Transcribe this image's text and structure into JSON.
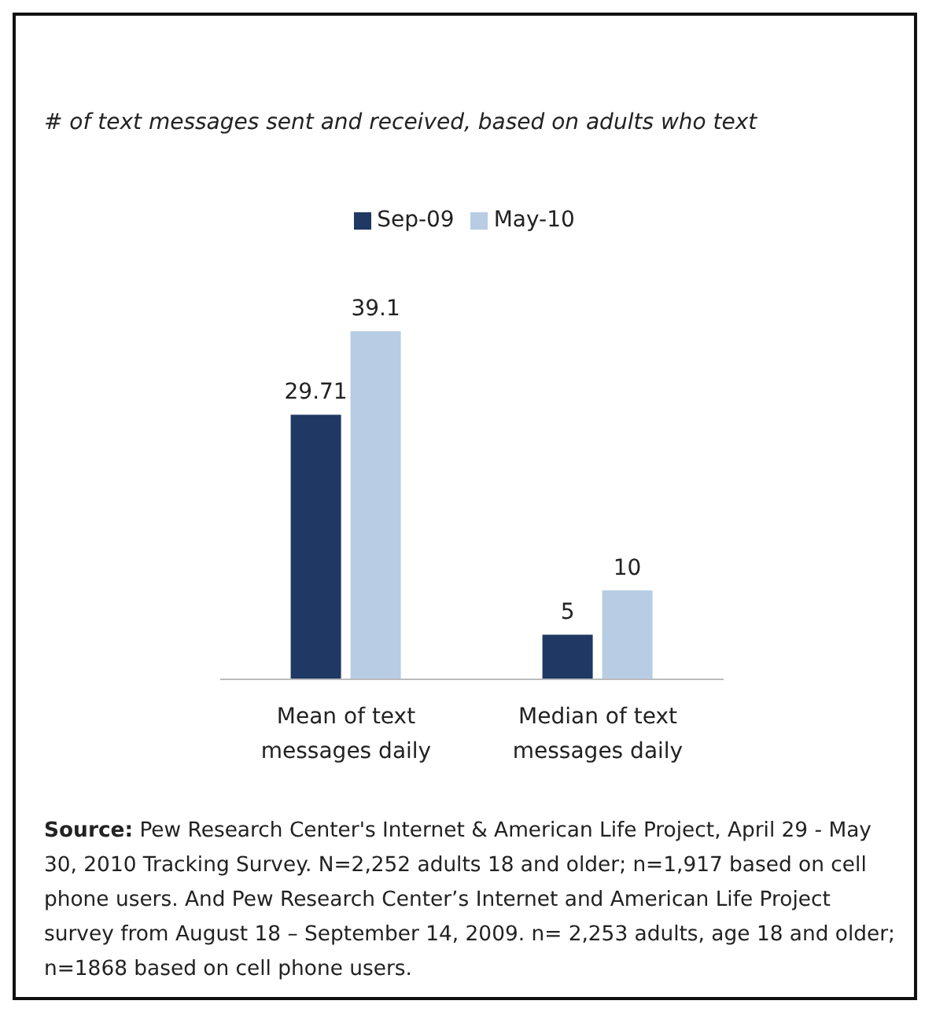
{
  "chart_data": {
    "type": "bar",
    "title": "# of text messages sent and received, based on adults who text",
    "categories": [
      "Mean of text messages daily",
      "Median of text messages daily"
    ],
    "series": [
      {
        "name": "Sep-09",
        "color": "#1f3864",
        "values": [
          29.71,
          5
        ]
      },
      {
        "name": "May-10",
        "color": "#b8cce4",
        "values": [
          39.1,
          10
        ]
      }
    ],
    "data_labels": true,
    "legend": "top",
    "grid": false,
    "annotations": [
      "Source:  Pew Research Center's Internet & American Life Project, April 29 - May 30, 2010 Tracking Survey. N=2,252 adults 18 and older; n=1,917 based on cell phone users. And Pew Research Center’s Internet and American Life Project survey from August 18 – September 14, 2009. n= 2,253 adults, age 18 and older; n=1868 based on cell phone users."
    ]
  }
}
